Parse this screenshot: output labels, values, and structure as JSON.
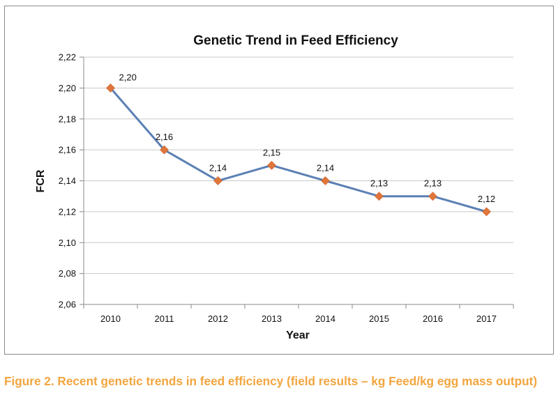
{
  "chart_data": {
    "type": "line",
    "title": "Genetic Trend in Feed Efficiency",
    "xlabel": "Year",
    "ylabel": "FCR",
    "categories": [
      "2010",
      "2011",
      "2012",
      "2013",
      "2014",
      "2015",
      "2016",
      "2017"
    ],
    "series": [
      {
        "values": [
          2.2,
          2.16,
          2.14,
          2.15,
          2.14,
          2.13,
          2.13,
          2.12
        ],
        "data_labels": [
          "2,20",
          "2,16",
          "2,14",
          "2,15",
          "2,14",
          "2,13",
          "2,13",
          "2,12"
        ],
        "line_color": "#5b80b4",
        "marker_color": "#e0763b",
        "marker": "diamond"
      }
    ],
    "ylim": [
      2.06,
      2.22
    ],
    "yticks": [
      2.06,
      2.08,
      2.1,
      2.12,
      2.14,
      2.16,
      2.18,
      2.2,
      2.22
    ],
    "ytick_labels": [
      "2,06",
      "2,08",
      "2,10",
      "2,12",
      "2,14",
      "2,16",
      "2,18",
      "2,20",
      "2,22"
    ],
    "grid": "horizontal",
    "legend": "none"
  },
  "caption": "Figure 2. Recent genetic trends in feed efficiency (field results – kg Feed/kg egg mass output)",
  "colors": {
    "caption": "#f2a53f",
    "gridline": "#c9c9c9",
    "axis": "#888888"
  }
}
